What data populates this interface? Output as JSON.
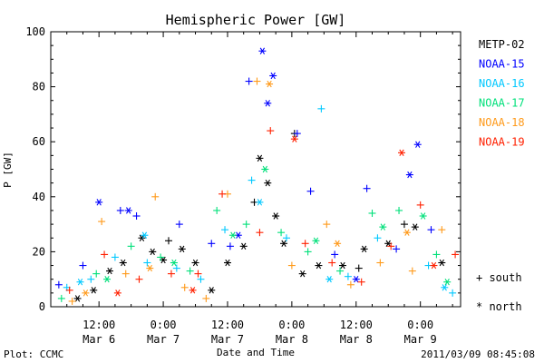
{
  "chart_data": {
    "type": "scatter",
    "title": "Hemispheric Power [GW]",
    "xlabel": "Date and Time",
    "ylabel": "P [GW]",
    "ylim": [
      0,
      100
    ],
    "y_ticks": [
      0,
      20,
      40,
      60,
      80,
      100
    ],
    "xlim_hours_from_mar6_0000": [
      3.0,
      79.5
    ],
    "x_ticks": [
      {
        "line1": "12:00",
        "line2": "Mar 6",
        "hour": 12
      },
      {
        "line1": "0:00",
        "line2": "Mar 7",
        "hour": 24
      },
      {
        "line1": "12:00",
        "line2": "Mar 7",
        "hour": 36
      },
      {
        "line1": "0:00",
        "line2": "Mar 8",
        "hour": 48
      },
      {
        "line1": "12:00",
        "line2": "Mar 8",
        "hour": 60
      },
      {
        "line1": "0:00",
        "line2": "Mar 9",
        "hour": 72
      }
    ],
    "marker_legend": {
      "south": "+ south",
      "north": "* north"
    },
    "series": [
      {
        "name": "METP-02",
        "color": "#000000",
        "points": [
          {
            "x": 8.0,
            "y": 3,
            "m": "north"
          },
          {
            "x": 11.0,
            "y": 6,
            "m": "north"
          },
          {
            "x": 14.0,
            "y": 13,
            "m": "north"
          },
          {
            "x": 16.5,
            "y": 16,
            "m": "north"
          },
          {
            "x": 20.0,
            "y": 25,
            "m": "north"
          },
          {
            "x": 22.0,
            "y": 20,
            "m": "north"
          },
          {
            "x": 24.0,
            "y": 17,
            "m": "north"
          },
          {
            "x": 27.5,
            "y": 21,
            "m": "north"
          },
          {
            "x": 30.0,
            "y": 16,
            "m": "north"
          },
          {
            "x": 33.0,
            "y": 6,
            "m": "north"
          },
          {
            "x": 36.0,
            "y": 16,
            "m": "north"
          },
          {
            "x": 39.0,
            "y": 22,
            "m": "north"
          },
          {
            "x": 42.0,
            "y": 54,
            "m": "north"
          },
          {
            "x": 43.5,
            "y": 45,
            "m": "north"
          },
          {
            "x": 45.0,
            "y": 33,
            "m": "north"
          },
          {
            "x": 46.5,
            "y": 23,
            "m": "north"
          },
          {
            "x": 50.0,
            "y": 12,
            "m": "north"
          },
          {
            "x": 53.0,
            "y": 15,
            "m": "north"
          },
          {
            "x": 57.5,
            "y": 15,
            "m": "north"
          },
          {
            "x": 61.5,
            "y": 21,
            "m": "north"
          },
          {
            "x": 66.0,
            "y": 23,
            "m": "north"
          },
          {
            "x": 71.0,
            "y": 29,
            "m": "north"
          },
          {
            "x": 76.0,
            "y": 16,
            "m": "north"
          },
          {
            "x": 25.0,
            "y": 24,
            "m": "south"
          },
          {
            "x": 41.0,
            "y": 38,
            "m": "south"
          },
          {
            "x": 48.5,
            "y": 63,
            "m": "south"
          },
          {
            "x": 60.5,
            "y": 14,
            "m": "south"
          },
          {
            "x": 69.0,
            "y": 30,
            "m": "south"
          }
        ]
      },
      {
        "name": "NOAA-15",
        "color": "#0000ff",
        "points": [
          {
            "x": 4.5,
            "y": 8,
            "m": "south"
          },
          {
            "x": 9.0,
            "y": 15,
            "m": "south"
          },
          {
            "x": 16.0,
            "y": 35,
            "m": "south"
          },
          {
            "x": 19.0,
            "y": 33,
            "m": "south"
          },
          {
            "x": 27.0,
            "y": 30,
            "m": "south"
          },
          {
            "x": 33.0,
            "y": 23,
            "m": "south"
          },
          {
            "x": 36.5,
            "y": 22,
            "m": "south"
          },
          {
            "x": 40.0,
            "y": 82,
            "m": "south"
          },
          {
            "x": 49.0,
            "y": 63,
            "m": "south"
          },
          {
            "x": 51.5,
            "y": 42,
            "m": "south"
          },
          {
            "x": 56.0,
            "y": 19,
            "m": "south"
          },
          {
            "x": 62.0,
            "y": 43,
            "m": "south"
          },
          {
            "x": 67.5,
            "y": 21,
            "m": "south"
          },
          {
            "x": 74.0,
            "y": 28,
            "m": "south"
          },
          {
            "x": 12.0,
            "y": 38,
            "m": "north"
          },
          {
            "x": 17.5,
            "y": 35,
            "m": "north"
          },
          {
            "x": 42.5,
            "y": 93,
            "m": "north"
          },
          {
            "x": 43.5,
            "y": 74,
            "m": "north"
          },
          {
            "x": 44.5,
            "y": 84,
            "m": "north"
          },
          {
            "x": 70.0,
            "y": 48,
            "m": "north"
          },
          {
            "x": 71.5,
            "y": 59,
            "m": "north"
          },
          {
            "x": 38.0,
            "y": 26,
            "m": "north"
          },
          {
            "x": 60.0,
            "y": 10,
            "m": "north"
          }
        ]
      },
      {
        "name": "NOAA-16",
        "color": "#00c8ff",
        "points": [
          {
            "x": 6.0,
            "y": 7,
            "m": "south"
          },
          {
            "x": 10.5,
            "y": 10,
            "m": "south"
          },
          {
            "x": 15.0,
            "y": 18,
            "m": "south"
          },
          {
            "x": 21.0,
            "y": 16,
            "m": "south"
          },
          {
            "x": 26.5,
            "y": 14,
            "m": "south"
          },
          {
            "x": 31.0,
            "y": 10,
            "m": "south"
          },
          {
            "x": 35.5,
            "y": 28,
            "m": "south"
          },
          {
            "x": 40.5,
            "y": 46,
            "m": "south"
          },
          {
            "x": 47.0,
            "y": 25,
            "m": "south"
          },
          {
            "x": 53.5,
            "y": 72,
            "m": "south"
          },
          {
            "x": 58.5,
            "y": 11,
            "m": "south"
          },
          {
            "x": 64.0,
            "y": 25,
            "m": "south"
          },
          {
            "x": 73.5,
            "y": 15,
            "m": "south"
          },
          {
            "x": 78.0,
            "y": 5,
            "m": "south"
          },
          {
            "x": 8.5,
            "y": 9,
            "m": "north"
          },
          {
            "x": 20.5,
            "y": 26,
            "m": "north"
          },
          {
            "x": 42.0,
            "y": 38,
            "m": "north"
          },
          {
            "x": 55.0,
            "y": 10,
            "m": "north"
          },
          {
            "x": 76.5,
            "y": 7,
            "m": "north"
          }
        ]
      },
      {
        "name": "NOAA-17",
        "color": "#00e07a",
        "points": [
          {
            "x": 5.0,
            "y": 3,
            "m": "south"
          },
          {
            "x": 11.5,
            "y": 12,
            "m": "south"
          },
          {
            "x": 18.0,
            "y": 22,
            "m": "south"
          },
          {
            "x": 23.5,
            "y": 18,
            "m": "south"
          },
          {
            "x": 29.0,
            "y": 13,
            "m": "south"
          },
          {
            "x": 34.0,
            "y": 35,
            "m": "south"
          },
          {
            "x": 39.5,
            "y": 30,
            "m": "south"
          },
          {
            "x": 46.0,
            "y": 27,
            "m": "south"
          },
          {
            "x": 51.0,
            "y": 20,
            "m": "south"
          },
          {
            "x": 57.0,
            "y": 13,
            "m": "south"
          },
          {
            "x": 63.0,
            "y": 34,
            "m": "south"
          },
          {
            "x": 68.0,
            "y": 35,
            "m": "south"
          },
          {
            "x": 75.0,
            "y": 19,
            "m": "south"
          },
          {
            "x": 13.5,
            "y": 10,
            "m": "north"
          },
          {
            "x": 26.0,
            "y": 16,
            "m": "north"
          },
          {
            "x": 37.0,
            "y": 26,
            "m": "north"
          },
          {
            "x": 43.0,
            "y": 50,
            "m": "north"
          },
          {
            "x": 52.5,
            "y": 24,
            "m": "north"
          },
          {
            "x": 65.0,
            "y": 29,
            "m": "north"
          },
          {
            "x": 72.5,
            "y": 33,
            "m": "north"
          },
          {
            "x": 77.0,
            "y": 9,
            "m": "north"
          }
        ]
      },
      {
        "name": "NOAA-18",
        "color": "#ff9a1a",
        "points": [
          {
            "x": 7.0,
            "y": 2,
            "m": "south"
          },
          {
            "x": 12.5,
            "y": 31,
            "m": "south"
          },
          {
            "x": 17.0,
            "y": 12,
            "m": "south"
          },
          {
            "x": 22.5,
            "y": 40,
            "m": "south"
          },
          {
            "x": 28.0,
            "y": 7,
            "m": "south"
          },
          {
            "x": 32.0,
            "y": 3,
            "m": "south"
          },
          {
            "x": 36.0,
            "y": 41,
            "m": "south"
          },
          {
            "x": 41.5,
            "y": 82,
            "m": "south"
          },
          {
            "x": 48.0,
            "y": 15,
            "m": "south"
          },
          {
            "x": 54.5,
            "y": 30,
            "m": "south"
          },
          {
            "x": 59.0,
            "y": 8,
            "m": "south"
          },
          {
            "x": 64.5,
            "y": 16,
            "m": "south"
          },
          {
            "x": 70.5,
            "y": 13,
            "m": "south"
          },
          {
            "x": 76.0,
            "y": 28,
            "m": "south"
          },
          {
            "x": 9.5,
            "y": 5,
            "m": "north"
          },
          {
            "x": 21.5,
            "y": 14,
            "m": "north"
          },
          {
            "x": 43.8,
            "y": 81,
            "m": "north"
          },
          {
            "x": 56.5,
            "y": 23,
            "m": "north"
          },
          {
            "x": 69.5,
            "y": 27,
            "m": "north"
          }
        ]
      },
      {
        "name": "NOAA-19",
        "color": "#ff2000",
        "points": [
          {
            "x": 6.5,
            "y": 6,
            "m": "south"
          },
          {
            "x": 13.0,
            "y": 19,
            "m": "south"
          },
          {
            "x": 19.5,
            "y": 10,
            "m": "south"
          },
          {
            "x": 25.5,
            "y": 12,
            "m": "south"
          },
          {
            "x": 30.5,
            "y": 12,
            "m": "south"
          },
          {
            "x": 35.0,
            "y": 41,
            "m": "south"
          },
          {
            "x": 42.0,
            "y": 27,
            "m": "south"
          },
          {
            "x": 44.0,
            "y": 64,
            "m": "south"
          },
          {
            "x": 50.5,
            "y": 23,
            "m": "south"
          },
          {
            "x": 55.5,
            "y": 16,
            "m": "south"
          },
          {
            "x": 61.0,
            "y": 9,
            "m": "south"
          },
          {
            "x": 66.5,
            "y": 22,
            "m": "south"
          },
          {
            "x": 72.0,
            "y": 37,
            "m": "south"
          },
          {
            "x": 78.5,
            "y": 19,
            "m": "south"
          },
          {
            "x": 15.5,
            "y": 5,
            "m": "north"
          },
          {
            "x": 29.5,
            "y": 6,
            "m": "north"
          },
          {
            "x": 48.5,
            "y": 61,
            "m": "north"
          },
          {
            "x": 68.5,
            "y": 56,
            "m": "north"
          },
          {
            "x": 74.5,
            "y": 15,
            "m": "north"
          }
        ]
      }
    ]
  },
  "footer": {
    "left": "Plot: CCMC",
    "right": "2011/03/09 08:45:08"
  }
}
